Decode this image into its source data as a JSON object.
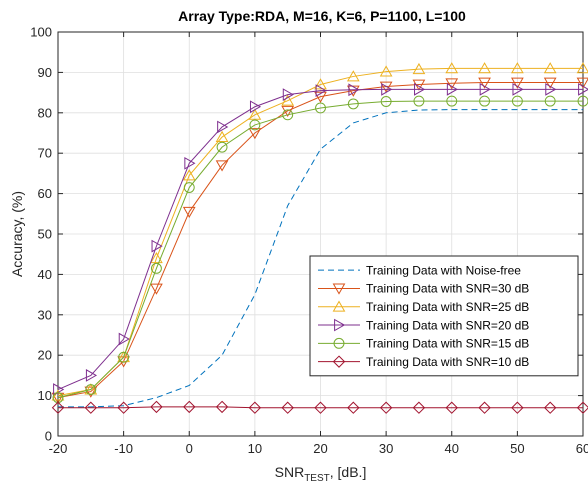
{
  "chart_data": {
    "type": "line",
    "title": "Array Type:RDA, M=16, K=6, P=1100, L=100",
    "xlabel": {
      "main": "SNR",
      "subscript": "TEST",
      "suffix": ", [dB.]"
    },
    "ylabel": "Accuracy, (%)",
    "xlim": [
      -20,
      60
    ],
    "ylim": [
      0,
      100
    ],
    "xticks": [
      -20,
      -10,
      0,
      10,
      20,
      30,
      40,
      50,
      60
    ],
    "yticks": [
      0,
      10,
      20,
      30,
      40,
      50,
      60,
      70,
      80,
      90,
      100
    ],
    "grid": true,
    "legend_position": "lower-right",
    "x": [
      -20,
      -15,
      -10,
      -5,
      0,
      5,
      10,
      15,
      20,
      25,
      30,
      35,
      40,
      45,
      50,
      55,
      60
    ],
    "series": [
      {
        "name": "Training Data with Noise-free",
        "color": "#0072BD",
        "line": "dashed",
        "marker": "none",
        "values": [
          7.2,
          7.2,
          7.5,
          9.5,
          12.5,
          20,
          35,
          57,
          71,
          77.5,
          80,
          80.7,
          80.8,
          80.8,
          80.8,
          80.8,
          80.8
        ]
      },
      {
        "name": "Training Data with SNR=30 dB",
        "color": "#D95319",
        "line": "solid",
        "marker": "triangle-down",
        "values": [
          9.5,
          11,
          18.5,
          36.5,
          55.5,
          67,
          75,
          80.5,
          84,
          85.5,
          86.5,
          87,
          87.3,
          87.5,
          87.5,
          87.5,
          87.5
        ]
      },
      {
        "name": "Training Data with SNR=25 dB",
        "color": "#EDB120",
        "line": "solid",
        "marker": "triangle-up",
        "values": [
          10,
          11.5,
          19.5,
          44,
          64.5,
          74,
          79.5,
          83,
          87,
          89,
          90.2,
          90.8,
          91,
          91,
          91,
          91,
          91
        ]
      },
      {
        "name": "Training Data with SNR=20 dB",
        "color": "#7E2F8E",
        "line": "solid",
        "marker": "triangle-right",
        "values": [
          11.5,
          15,
          24,
          47,
          67.5,
          76.5,
          81.5,
          84.5,
          85.5,
          85.7,
          85.8,
          85.8,
          85.8,
          85.8,
          85.8,
          85.8,
          85.8
        ]
      },
      {
        "name": "Training Data with SNR=15 dB",
        "color": "#77AC30",
        "line": "solid",
        "marker": "circle",
        "values": [
          9.5,
          11.5,
          19.5,
          41.5,
          61.5,
          71.5,
          77,
          79.5,
          81.2,
          82.2,
          82.8,
          82.9,
          82.9,
          82.9,
          82.9,
          82.9,
          82.9
        ]
      },
      {
        "name": "Training Data with SNR=10 dB",
        "color": "#A2142F",
        "line": "solid",
        "marker": "diamond",
        "values": [
          7,
          7,
          7,
          7.2,
          7.2,
          7.2,
          7,
          7,
          7,
          7,
          7,
          7,
          7,
          7,
          7,
          7,
          7
        ]
      }
    ]
  }
}
